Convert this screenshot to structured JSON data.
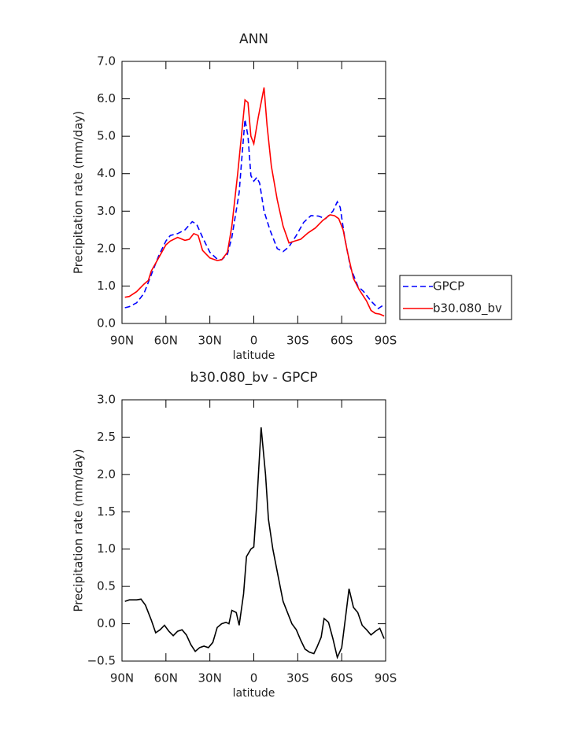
{
  "chart_data": [
    {
      "type": "line",
      "title": "ANN",
      "xlabel": "latitude",
      "ylabel": "Precipitation rate (mm/day)",
      "xlim": [
        90,
        -90
      ],
      "xticks": [
        {
          "value": 90,
          "label": "90N"
        },
        {
          "value": 60,
          "label": "60N"
        },
        {
          "value": 30,
          "label": "30N"
        },
        0,
        {
          "value": -30,
          "label": "30S"
        },
        {
          "value": -60,
          "label": "60S"
        },
        {
          "value": -90,
          "label": "90S"
        }
      ],
      "ylim": [
        0,
        7
      ],
      "yticks": [
        {
          "value": 0,
          "label": "0.0"
        },
        {
          "value": 1,
          "label": "1.0"
        },
        {
          "value": 2,
          "label": "2.0"
        },
        {
          "value": 3,
          "label": "3.0"
        },
        {
          "value": 4,
          "label": "4.0"
        },
        {
          "value": 5,
          "label": "5.0"
        },
        {
          "value": 6,
          "label": "6.0"
        },
        {
          "value": 7,
          "label": "7.0"
        }
      ],
      "legend": "right",
      "series": [
        {
          "name": "GPCP",
          "color": "#0000ff",
          "dashed": true,
          "x": [
            88,
            85,
            80,
            75,
            70,
            65,
            60,
            57,
            52,
            47,
            42,
            39,
            35,
            30,
            25,
            22,
            18,
            15,
            10,
            8,
            6,
            4,
            2,
            0,
            -2,
            -4,
            -7,
            -11,
            -16,
            -20,
            -24,
            -29,
            -34,
            -39,
            -44,
            -49,
            -54,
            -57,
            -59,
            -62,
            -66,
            -71,
            -75,
            -80,
            -85,
            -88
          ],
          "values": [
            0.42,
            0.45,
            0.55,
            0.8,
            1.3,
            1.8,
            2.2,
            2.35,
            2.4,
            2.5,
            2.72,
            2.65,
            2.3,
            1.9,
            1.72,
            1.7,
            1.85,
            2.3,
            3.5,
            4.5,
            5.45,
            5.0,
            3.95,
            3.8,
            3.9,
            3.75,
            3.0,
            2.5,
            2.0,
            1.92,
            2.05,
            2.35,
            2.7,
            2.88,
            2.87,
            2.8,
            3.0,
            3.25,
            3.1,
            2.3,
            1.5,
            1.0,
            0.85,
            0.6,
            0.4,
            0.48
          ]
        },
        {
          "name": "b30.080_bv",
          "color": "#ff0000",
          "dashed": false,
          "x": [
            88,
            85,
            80,
            75,
            72,
            70,
            65,
            60,
            57,
            52,
            47,
            44,
            41,
            38,
            35,
            30,
            25,
            22,
            18,
            15,
            11,
            6,
            4,
            2,
            0,
            -3,
            -7,
            -9,
            -12,
            -16,
            -20,
            -24,
            -28,
            -32,
            -37,
            -42,
            -47,
            -52,
            -55,
            -58,
            -61,
            -64,
            -68,
            -72,
            -77,
            -80,
            -83,
            -86,
            -89
          ],
          "values": [
            0.7,
            0.72,
            0.85,
            1.05,
            1.15,
            1.4,
            1.75,
            2.1,
            2.2,
            2.3,
            2.22,
            2.25,
            2.4,
            2.35,
            1.95,
            1.75,
            1.68,
            1.7,
            1.9,
            2.6,
            4.0,
            5.97,
            5.9,
            5.0,
            4.8,
            5.5,
            6.3,
            5.3,
            4.2,
            3.3,
            2.6,
            2.15,
            2.2,
            2.25,
            2.42,
            2.55,
            2.75,
            2.9,
            2.88,
            2.8,
            2.5,
            1.9,
            1.2,
            0.9,
            0.6,
            0.35,
            0.27,
            0.25,
            0.2
          ]
        }
      ]
    },
    {
      "type": "line",
      "title": "b30.080_bv - GPCP",
      "xlabel": "latitude",
      "ylabel": "Precipitation rate (mm/day)",
      "xlim": [
        90,
        -90
      ],
      "xticks": [
        {
          "value": 90,
          "label": "90N"
        },
        {
          "value": 60,
          "label": "60N"
        },
        {
          "value": 30,
          "label": "30N"
        },
        0,
        {
          "value": -30,
          "label": "30S"
        },
        {
          "value": -60,
          "label": "60S"
        },
        {
          "value": -90,
          "label": "90S"
        }
      ],
      "ylim": [
        -0.5,
        3
      ],
      "yticks": [
        {
          "value": -0.5,
          "label": "−0.5"
        },
        {
          "value": 0,
          "label": "0.0"
        },
        0.5,
        {
          "value": 1,
          "label": "1.0"
        },
        1.5,
        {
          "value": 2,
          "label": "2.0"
        },
        2.5,
        {
          "value": 3,
          "label": "3.0"
        }
      ],
      "series": [
        {
          "color": "#000000",
          "dashed": false,
          "x": [
            88,
            85,
            80,
            77,
            74,
            70,
            67,
            64,
            61,
            58,
            55,
            52,
            49,
            46,
            43,
            40,
            37,
            34,
            31,
            28,
            25,
            22,
            19,
            17,
            15,
            12,
            10,
            7,
            5,
            2,
            0,
            -2,
            -5,
            -8,
            -10,
            -13,
            -17,
            -20,
            -23,
            -26,
            -29,
            -32,
            -35,
            -38,
            -41,
            -43,
            -46,
            -48,
            -51,
            -54,
            -57,
            -60,
            -63,
            -65,
            -68,
            -71,
            -74,
            -77,
            -80,
            -83,
            -86,
            -89
          ],
          "values": [
            0.3,
            0.32,
            0.32,
            0.33,
            0.25,
            0.05,
            -0.12,
            -0.08,
            -0.02,
            -0.1,
            -0.16,
            -0.1,
            -0.08,
            -0.15,
            -0.28,
            -0.37,
            -0.32,
            -0.3,
            -0.32,
            -0.25,
            -0.05,
            0.0,
            0.02,
            0.0,
            0.18,
            0.15,
            -0.02,
            0.4,
            0.9,
            1.0,
            1.03,
            1.6,
            2.63,
            2.0,
            1.4,
            1.0,
            0.6,
            0.3,
            0.15,
            0.0,
            -0.08,
            -0.22,
            -0.34,
            -0.38,
            -0.4,
            -0.32,
            -0.18,
            0.07,
            0.02,
            -0.2,
            -0.45,
            -0.32,
            0.15,
            0.47,
            0.22,
            0.15,
            -0.02,
            -0.08,
            -0.15,
            -0.1,
            -0.06,
            -0.2
          ]
        }
      ]
    }
  ]
}
